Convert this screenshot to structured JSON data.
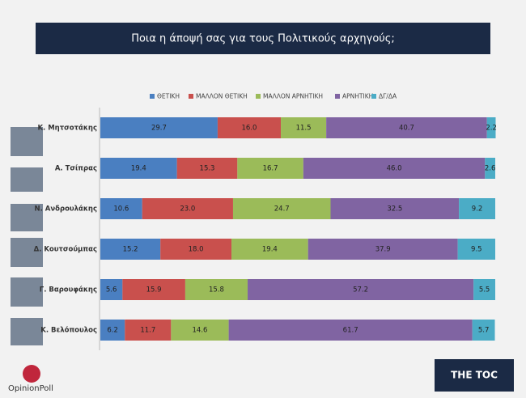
{
  "chart_data": {
    "type": "stacked-bar-horizontal",
    "title": "Ποια η άποψή σας για τους Πολιτικούς αρχηγούς;",
    "categories": [
      "Κ. Μητσοτάκης",
      "Α. Τσίπρας",
      "Ν. Ανδρουλάκης",
      "Δ. Κουτσούμπας",
      "Γ. Βαρουφάκης",
      "Κ. Βελόπουλος"
    ],
    "xlim": [
      0,
      100
    ],
    "series": [
      {
        "name": "ΘΕΤΙΚΗ",
        "color": "#4a7fc1",
        "values": [
          29.7,
          19.4,
          10.6,
          15.2,
          5.6,
          6.2
        ],
        "value_labels": [
          "29.7",
          "19.4",
          "10.6",
          "15.2",
          "5.6",
          "6.2"
        ]
      },
      {
        "name": "ΜΑΛΛΟΝ ΘΕΤΙΚΗ",
        "color": "#c9504d",
        "values": [
          16.0,
          15.3,
          23.0,
          18.0,
          15.9,
          11.7
        ],
        "value_labels": [
          "16.0",
          "15.3",
          "23.0",
          "18.0",
          "15.9",
          "11.7"
        ]
      },
      {
        "name": "ΜΑΛΛΟΝ ΑΡΝΗΤΙΚΗ",
        "color": "#9bbb59",
        "values": [
          11.5,
          16.7,
          24.7,
          19.4,
          15.8,
          14.6
        ],
        "value_labels": [
          "11.5",
          "16.7",
          "24.7",
          "19.4",
          "15.8",
          "14.6"
        ]
      },
      {
        "name": "ΑΡΝΗΤΙΚΗ",
        "color": "#8064a2",
        "values": [
          40.7,
          46.0,
          32.5,
          37.9,
          57.2,
          61.7
        ],
        "value_labels": [
          "40.7",
          "46.0",
          "32.5",
          "37.9",
          "57.2",
          "61.7"
        ]
      },
      {
        "name": "ΔΓ/ΔΑ",
        "color": "#4bacc6",
        "values": [
          2.2,
          2.6,
          9.2,
          9.5,
          5.5,
          5.7
        ],
        "value_labels": [
          "2.2",
          "2.6",
          "9.2",
          "9.5",
          "5.5",
          "5.7"
        ]
      }
    ],
    "legend": "top",
    "logos": {
      "left": "OpinionPoll",
      "right": "THE TOC"
    }
  }
}
